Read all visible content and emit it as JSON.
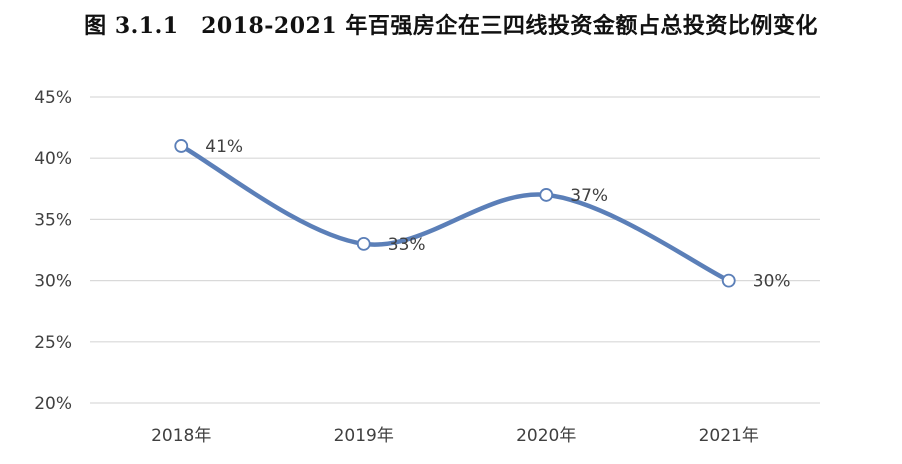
{
  "chart_data": {
    "type": "line",
    "title": "图 3.1.1　2018-2021 年百强房企在三四线投资金额占总投资比例变化",
    "categories": [
      "2018年",
      "2019年",
      "2020年",
      "2021年"
    ],
    "series": [
      {
        "values": [
          41,
          33,
          37,
          30
        ],
        "data_labels": [
          "41%",
          "33%",
          "37%",
          "30%"
        ],
        "color": "#5B7FB8",
        "smooth": true,
        "marker": "hollow-circle"
      }
    ],
    "y_ticks": [
      "20%",
      "25%",
      "30%",
      "35%",
      "40%",
      "45%"
    ],
    "ylim": [
      20,
      45
    ],
    "y_unit": "%",
    "grid": true,
    "legend": false,
    "colors": {
      "line": "#5B7FB8",
      "grid": "#D9D9D9",
      "text": "#404040",
      "marker_fill": "#ffffff"
    }
  }
}
